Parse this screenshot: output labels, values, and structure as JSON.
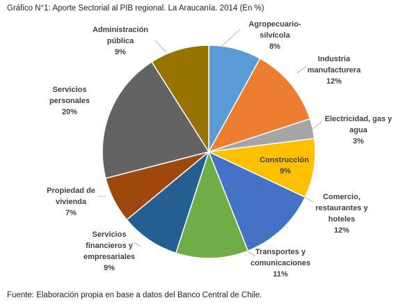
{
  "title": "Gráfico N°1: Aporte Sectorial al PIB regional. La Araucanía. 2014 (En %)",
  "source": "Fuente: Elaboración propia en base a datos del Banco Central de Chile.",
  "chart_data": {
    "type": "pie",
    "title": "Gráfico N°1: Aporte Sectorial al PIB regional. La Araucanía. 2014 (En %)",
    "unit": "%",
    "slices": [
      {
        "label": [
          "Agropecuario-",
          "silvícola"
        ],
        "value": 8,
        "pct_label": "8%",
        "color": "#5b9bd5"
      },
      {
        "label": [
          "Industria",
          "manufacturera"
        ],
        "value": 12,
        "pct_label": "12%",
        "color": "#ed7d31"
      },
      {
        "label": [
          "Electricidad, gas y",
          "agua"
        ],
        "value": 3,
        "pct_label": "3%",
        "color": "#a5a5a5"
      },
      {
        "label": [
          "Construcción"
        ],
        "value": 9,
        "pct_label": "9%",
        "color": "#ffc000"
      },
      {
        "label": [
          "Comercio,",
          "restaurantes y",
          "hoteles"
        ],
        "value": 12,
        "pct_label": "12%",
        "color": "#4472c4"
      },
      {
        "label": [
          "Transportes y",
          "comunicaciones"
        ],
        "value": 11,
        "pct_label": "11%",
        "color": "#70ad47"
      },
      {
        "label": [
          "Servicios",
          "financieros y",
          "empresariales"
        ],
        "value": 9,
        "pct_label": "9%",
        "color": "#255e91"
      },
      {
        "label": [
          "Propiedad de",
          "vivienda"
        ],
        "value": 7,
        "pct_label": "7%",
        "color": "#9e480e"
      },
      {
        "label": [
          "Servicios",
          "personales"
        ],
        "value": 20,
        "pct_label": "20%",
        "color": "#636363"
      },
      {
        "label": [
          "Administración",
          "pública"
        ],
        "value": 9,
        "pct_label": "9%",
        "color": "#997300"
      }
    ]
  }
}
